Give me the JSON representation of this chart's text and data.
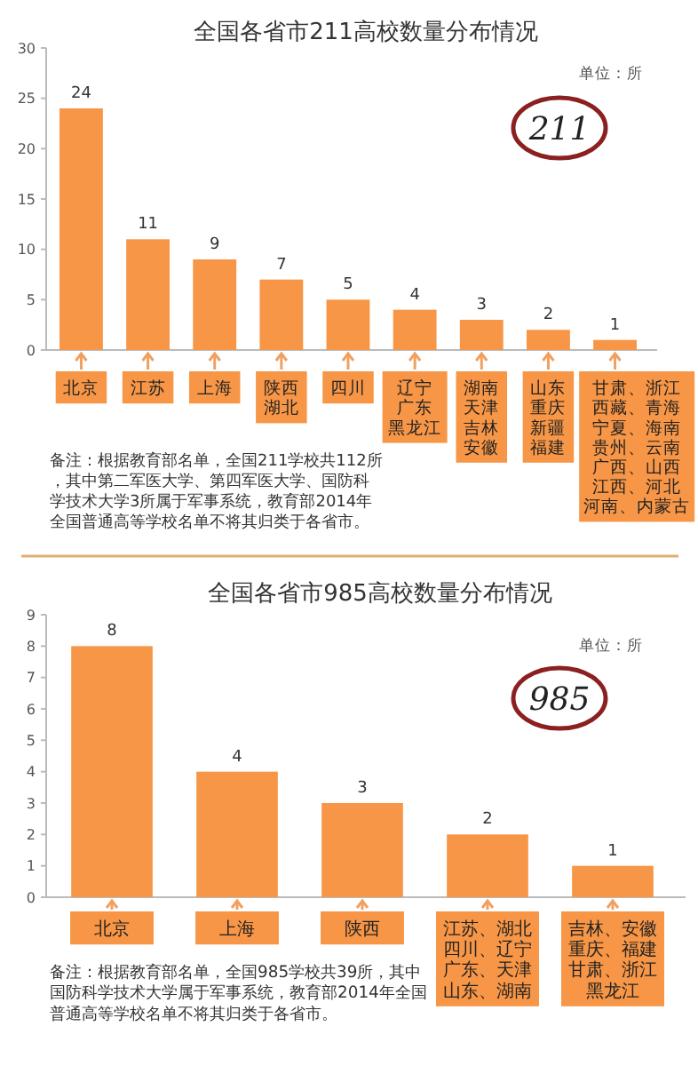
{
  "chart_data": [
    {
      "type": "bar",
      "title": "全国各省市211高校数量分布情况",
      "categories": [
        "北京",
        "江苏",
        "上海",
        "陕西湖北",
        "四川",
        "辽宁广东黑龙江",
        "湖南天津吉林安徽",
        "山东重庆新疆福建",
        "甘肃、浙江西藏、青海宁夏、海南贵州、云南广西、山西江西、河北河南、内蒙古"
      ],
      "values": [
        24,
        11,
        9,
        7,
        5,
        4,
        3,
        2,
        1
      ],
      "color": "#f79646",
      "ylim": [
        0,
        30
      ],
      "yticks": [
        0,
        5,
        10,
        15,
        20,
        25,
        30
      ],
      "grid": false,
      "data_labels": true,
      "annotations": [
        "单位：所",
        "211",
        "备注：根据教育部名单，全国211学校共112所，其中第二军医大学、第四军医大学、国防科学技术大学3所属于军事系统，教育部2014年全国普通高等学校名单不将其归类于各省市。"
      ]
    },
    {
      "type": "bar",
      "title": "全国各省市985高校数量分布情况",
      "categories": [
        "北京",
        "上海",
        "陕西",
        "江苏、湖北四川、辽宁广东、天津山东、湖南",
        "吉林、安徽重庆、福建甘肃、浙江黑龙江"
      ],
      "values": [
        8,
        4,
        3,
        2,
        1
      ],
      "color": "#f79646",
      "ylim": [
        0,
        9
      ],
      "yticks": [
        0,
        1,
        2,
        3,
        4,
        5,
        6,
        7,
        8,
        9
      ],
      "grid": false,
      "data_labels": true,
      "annotations": [
        "单位：所",
        "985",
        "备注：根据教育部名单，全国985学校共39所，其中国防科学技术大学属于军事系统，教育部2014年全国普通高等学校名单不将其归类于各省市。"
      ]
    }
  ]
}
